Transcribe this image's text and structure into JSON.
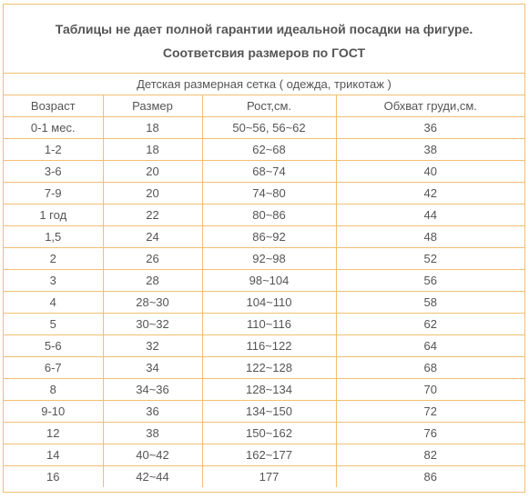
{
  "header": {
    "line1": "Таблицы не дает полной гарантии идеальной посадки на фигуре.",
    "line2": "Соответсвия размеров по ГОСТ"
  },
  "table": {
    "caption": "Детская размерная сетка ( одежда, трикотаж )",
    "columns": [
      "Возраст",
      "Размер",
      "Рост,см.",
      "Обхват груди,см."
    ],
    "rows": [
      [
        "0-1 мес.",
        "18",
        "50~56, 56~62",
        "36"
      ],
      [
        "1-2",
        "18",
        "62~68",
        "38"
      ],
      [
        "3-6",
        "20",
        "68~74",
        "40"
      ],
      [
        "7-9",
        "20",
        "74~80",
        "42"
      ],
      [
        "1 год",
        "22",
        "80~86",
        "44"
      ],
      [
        "1,5",
        "24",
        "86~92",
        "48"
      ],
      [
        "2",
        "26",
        "92~98",
        "52"
      ],
      [
        "3",
        "28",
        "98~104",
        "56"
      ],
      [
        "4",
        "28~30",
        "104~110",
        "58"
      ],
      [
        "5",
        "30~32",
        "110~116",
        "62"
      ],
      [
        "5-6",
        "32",
        "116~122",
        "64"
      ],
      [
        "6-7",
        "34",
        "122~128",
        "68"
      ],
      [
        "8",
        "34~36",
        "128~134",
        "70"
      ],
      [
        "9-10",
        "36",
        "134~150",
        "72"
      ],
      [
        "12",
        "38",
        "150~162",
        "76"
      ],
      [
        "14",
        "40~42",
        "162~177",
        "82"
      ],
      [
        "16",
        "42~44",
        "177",
        "86"
      ]
    ]
  },
  "colors": {
    "border": "#f0c070",
    "text": "#555555"
  }
}
